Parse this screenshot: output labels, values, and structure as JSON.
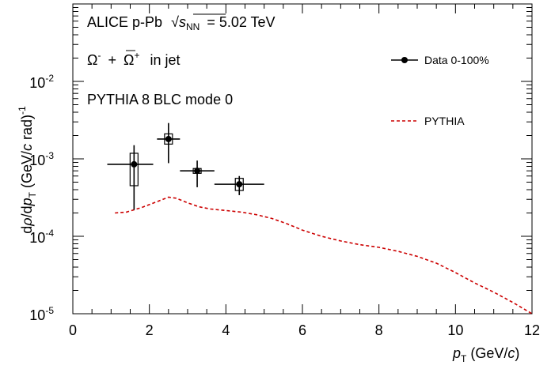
{
  "header": {
    "line1_prefix": "ALICE p-Pb",
    "line1_snn_s": "s",
    "line1_snn_sub": "NN",
    "line1_suffix": "= 5.02 TeV",
    "line2_omega": "Ω",
    "line2_omega_sup": "-",
    "line2_plus": "+",
    "line2_omegabar": "Ω",
    "line2_omegabar_sup": "+",
    "line2_suffix": "in jet",
    "line3": "PYTHIA 8 BLC mode 0"
  },
  "colors": {
    "data": "#000000",
    "pythia": "#cc0000"
  },
  "chart_data": {
    "type": "scatter",
    "xlabel": "p_T (GeV/c)",
    "ylabel": "dρ/dp_T (GeV/c rad)^-1",
    "xlim": [
      0,
      12
    ],
    "ylim": [
      1e-05,
      0.1
    ],
    "yscale": "log",
    "x_ticks": [
      "0",
      "2",
      "4",
      "6",
      "8",
      "10",
      "12"
    ],
    "y_ticks": [
      {
        "base": "10",
        "exp": "-5",
        "value": 1e-05
      },
      {
        "base": "10",
        "exp": "-4",
        "value": 0.0001
      },
      {
        "base": "10",
        "exp": "-3",
        "value": 0.001
      },
      {
        "base": "10",
        "exp": "-2",
        "value": 0.01
      }
    ],
    "legend_placement": "top-right",
    "series": [
      {
        "name": "Data 0-100%",
        "style": "markers",
        "points": [
          {
            "x": 1.6,
            "y": 0.00085,
            "xlo": 0.9,
            "xhi": 2.1,
            "ylo": 0.00022,
            "yhi": 0.0015,
            "syslo": 0.00045,
            "syshi": 0.00118
          },
          {
            "x": 2.5,
            "y": 0.0018,
            "xlo": 2.2,
            "xhi": 2.8,
            "ylo": 0.00088,
            "yhi": 0.0029,
            "syslo": 0.00155,
            "syshi": 0.0021
          },
          {
            "x": 3.25,
            "y": 0.0007,
            "xlo": 2.8,
            "xhi": 3.7,
            "ylo": 0.00043,
            "yhi": 0.00095,
            "syslo": 0.00065,
            "syshi": 0.00075
          },
          {
            "x": 4.35,
            "y": 0.00047,
            "xlo": 3.7,
            "xhi": 5.0,
            "ylo": 0.00034,
            "yhi": 0.0006,
            "syslo": 0.00039,
            "syshi": 0.00056
          }
        ]
      },
      {
        "name": "PYTHIA",
        "style": "dashed-line",
        "x": [
          1.1,
          1.4,
          1.8,
          2.2,
          2.5,
          2.7,
          3.0,
          3.3,
          3.6,
          4.0,
          4.4,
          4.8,
          5.2,
          5.6,
          6.0,
          6.5,
          7.0,
          7.5,
          8.0,
          8.5,
          9.0,
          9.5,
          10.0,
          10.5,
          11.0,
          11.5,
          12.0
        ],
        "y": [
          0.0002,
          0.000205,
          0.000235,
          0.00028,
          0.00032,
          0.00031,
          0.00027,
          0.00024,
          0.000225,
          0.000215,
          0.000205,
          0.00019,
          0.00017,
          0.000145,
          0.00012,
          0.0001,
          8.7e-05,
          7.8e-05,
          7.2e-05,
          6.4e-05,
          5.5e-05,
          4.5e-05,
          3.4e-05,
          2.5e-05,
          1.9e-05,
          1.4e-05,
          1e-05
        ]
      }
    ]
  }
}
